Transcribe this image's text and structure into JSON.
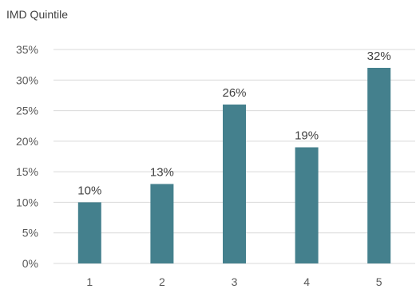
{
  "chart_data": {
    "type": "bar",
    "title": "IMD Quintile",
    "categories": [
      "1",
      "2",
      "3",
      "4",
      "5"
    ],
    "values": [
      10,
      13,
      26,
      19,
      32
    ],
    "data_labels": [
      "10%",
      "13%",
      "26%",
      "19%",
      "32%"
    ],
    "yticks": [
      "0%",
      "5%",
      "10%",
      "15%",
      "20%",
      "25%",
      "30%",
      "35%"
    ],
    "ylim": [
      0,
      35
    ],
    "grid": true,
    "legend": "none",
    "bar_color": "#44808D",
    "gridline_color": "#d9d9d9"
  }
}
